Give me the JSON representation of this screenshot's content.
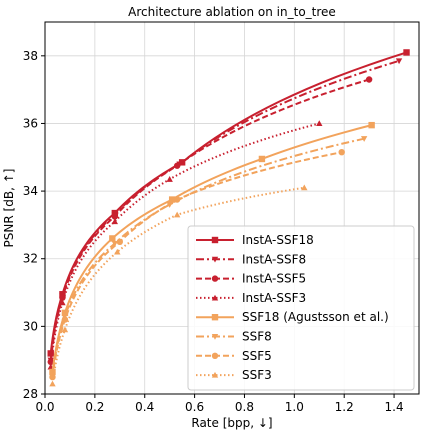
{
  "chart_data": {
    "type": "line",
    "title": "Architecture ablation on in_to_tree",
    "xlabel": "Rate [bpp, ↓]",
    "ylabel": "PSNR [dB, ↑]",
    "xlim": [
      0.0,
      1.5
    ],
    "ylim": [
      28,
      39
    ],
    "xticks": [
      0.0,
      0.2,
      0.4,
      0.6,
      0.8,
      1.0,
      1.2,
      1.4
    ],
    "xtick_labels": [
      "0.0",
      "0.2",
      "0.4",
      "0.6",
      "0.8",
      "1.0",
      "1.2",
      "1.4"
    ],
    "yticks": [
      28,
      30,
      32,
      34,
      36,
      38
    ],
    "ytick_labels": [
      "28",
      "30",
      "32",
      "34",
      "36",
      "38"
    ],
    "grid": true,
    "legend_position": "lower-right",
    "colors": {
      "red": "#c8202f",
      "orange": "#f2a35c",
      "grid": "#d6d6d6"
    },
    "series": [
      {
        "name": "InstA-SSF18",
        "color": "#c8202f",
        "dash": "solid",
        "marker": "square",
        "x": [
          0.023,
          0.07,
          0.28,
          0.55,
          1.45
        ],
        "y": [
          29.2,
          30.95,
          33.35,
          34.85,
          38.1
        ]
      },
      {
        "name": "InstA-SSF8",
        "color": "#c8202f",
        "dash": "dashdot",
        "marker": "triangle-down",
        "x": [
          0.023,
          0.07,
          0.28,
          0.54,
          1.42
        ],
        "y": [
          29.0,
          30.9,
          33.3,
          34.8,
          37.85
        ]
      },
      {
        "name": "InstA-SSF5",
        "color": "#c8202f",
        "dash": "dashed",
        "marker": "circle",
        "x": [
          0.023,
          0.07,
          0.28,
          0.53,
          1.3
        ],
        "y": [
          28.95,
          30.85,
          33.25,
          34.75,
          37.3
        ]
      },
      {
        "name": "InstA-SSF3",
        "color": "#c8202f",
        "dash": "dotted",
        "marker": "triangle-up",
        "x": [
          0.023,
          0.07,
          0.28,
          0.5,
          1.1
        ],
        "y": [
          28.8,
          30.7,
          33.1,
          34.35,
          36.0
        ]
      },
      {
        "name": "SSF18 (Agustsson et al.)",
        "color": "#f2a35c",
        "dash": "solid",
        "marker": "square",
        "x": [
          0.03,
          0.08,
          0.27,
          0.51,
          0.87,
          1.31
        ],
        "y": [
          28.65,
          30.4,
          32.6,
          33.75,
          34.95,
          35.95
        ]
      },
      {
        "name": "SSF8",
        "color": "#f2a35c",
        "dash": "dashdot",
        "marker": "triangle-down",
        "x": [
          0.03,
          0.08,
          0.28,
          0.5,
          1.28
        ],
        "y": [
          28.55,
          30.3,
          32.45,
          33.6,
          35.55
        ]
      },
      {
        "name": "SSF5",
        "color": "#f2a35c",
        "dash": "dashed",
        "marker": "circle",
        "x": [
          0.03,
          0.08,
          0.3,
          0.53,
          1.19
        ],
        "y": [
          28.5,
          30.2,
          32.5,
          33.75,
          35.15
        ]
      },
      {
        "name": "SSF3",
        "color": "#f2a35c",
        "dash": "dotted",
        "marker": "triangle-up",
        "x": [
          0.03,
          0.08,
          0.29,
          0.53,
          1.04
        ],
        "y": [
          28.3,
          29.9,
          32.2,
          33.3,
          34.1
        ]
      }
    ]
  }
}
